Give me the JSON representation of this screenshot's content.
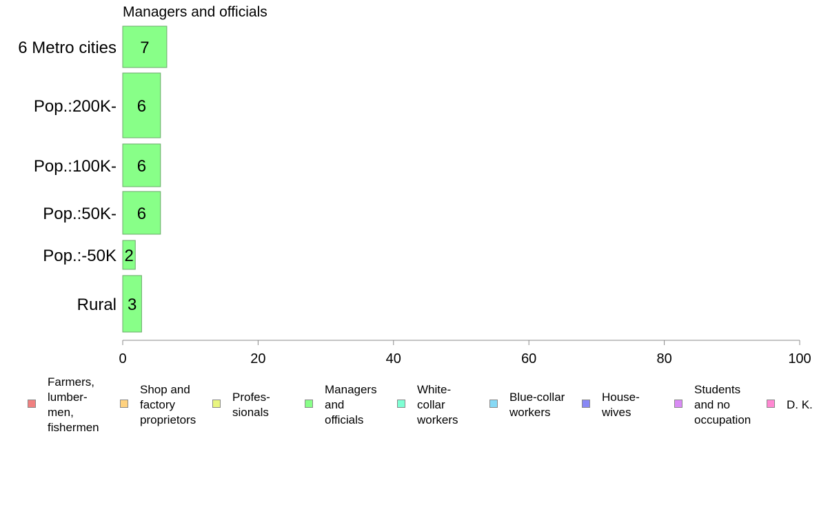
{
  "chart_data": {
    "type": "bar",
    "orientation": "horizontal",
    "title": "Managers and officials",
    "categories": [
      "6 Metro cities",
      "Pop.:200K-",
      "Pop.:100K-",
      "Pop.:50K-",
      "Pop.:-50K",
      "Rural"
    ],
    "values": [
      7,
      6,
      6,
      6,
      2,
      3
    ],
    "value_labels": [
      "7",
      "6",
      "6",
      "6",
      "2",
      "3"
    ],
    "bar_widths_relative": [
      0.66,
      0.98,
      0.66,
      0.66,
      0.6,
      0.86
    ],
    "xlim": [
      0,
      100
    ],
    "xticks": [
      "0",
      "20",
      "40",
      "60",
      "80",
      "100"
    ],
    "bar_color": "#88ff88",
    "bar_edge_color": "#6aa86a",
    "grid": false,
    "legend_position": "bottom",
    "legend": [
      {
        "label": "Farmers,\nlumber-\nmen,\nfishermen",
        "color": "#f08080"
      },
      {
        "label": "Shop and\nfactory\nproprietors",
        "color": "#ffd27f"
      },
      {
        "label": "Profes-\nsionals",
        "color": "#e8f57f"
      },
      {
        "label": "Managers\nand\nofficials",
        "color": "#88ff88"
      },
      {
        "label": "White-\ncollar\nworkers",
        "color": "#7fffd4"
      },
      {
        "label": "Blue-collar\nworkers",
        "color": "#87d9f5"
      },
      {
        "label": "House-\nwives",
        "color": "#8888f5"
      },
      {
        "label": "Students\nand no\noccupation",
        "color": "#d98bf5"
      },
      {
        "label": "D. K.",
        "color": "#ff88d2"
      }
    ]
  }
}
